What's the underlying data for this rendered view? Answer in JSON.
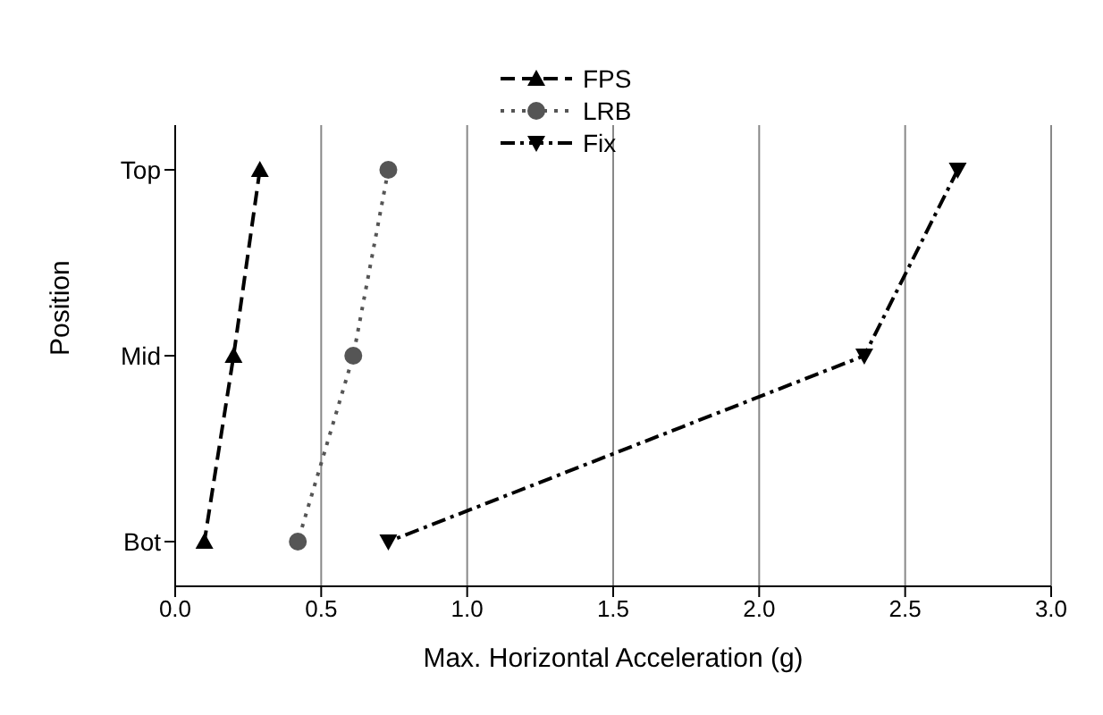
{
  "chart_data": {
    "type": "line",
    "orientation": "horizontal",
    "xlabel": "Max. Horizontal Acceleration (g)",
    "ylabel": "Position",
    "categories": [
      "Top",
      "Mid",
      "Bot"
    ],
    "series": [
      {
        "name": "FPS",
        "color": "#000000",
        "marker": "triangle",
        "line_style": "dashed",
        "values": [
          0.29,
          0.2,
          0.1
        ]
      },
      {
        "name": "LRB",
        "color": "#555555",
        "marker": "circle",
        "line_style": "dotted",
        "values": [
          0.73,
          0.61,
          0.42
        ]
      },
      {
        "name": "Fix",
        "color": "#000000",
        "marker": "triangle-down",
        "line_style": "dashdot",
        "values": [
          2.68,
          2.36,
          0.73
        ]
      }
    ],
    "xlim": [
      0,
      3
    ],
    "xticks": [
      {
        "value": 0,
        "label": "0.0"
      },
      {
        "value": 0.5,
        "label": "0.5"
      },
      {
        "value": 1,
        "label": "1.0"
      },
      {
        "value": 1.5,
        "label": "1.5"
      },
      {
        "value": 2,
        "label": "2.0"
      },
      {
        "value": 2.5,
        "label": "2.5"
      },
      {
        "value": 3,
        "label": "3.0"
      }
    ],
    "grid": "x",
    "legend": "top"
  }
}
